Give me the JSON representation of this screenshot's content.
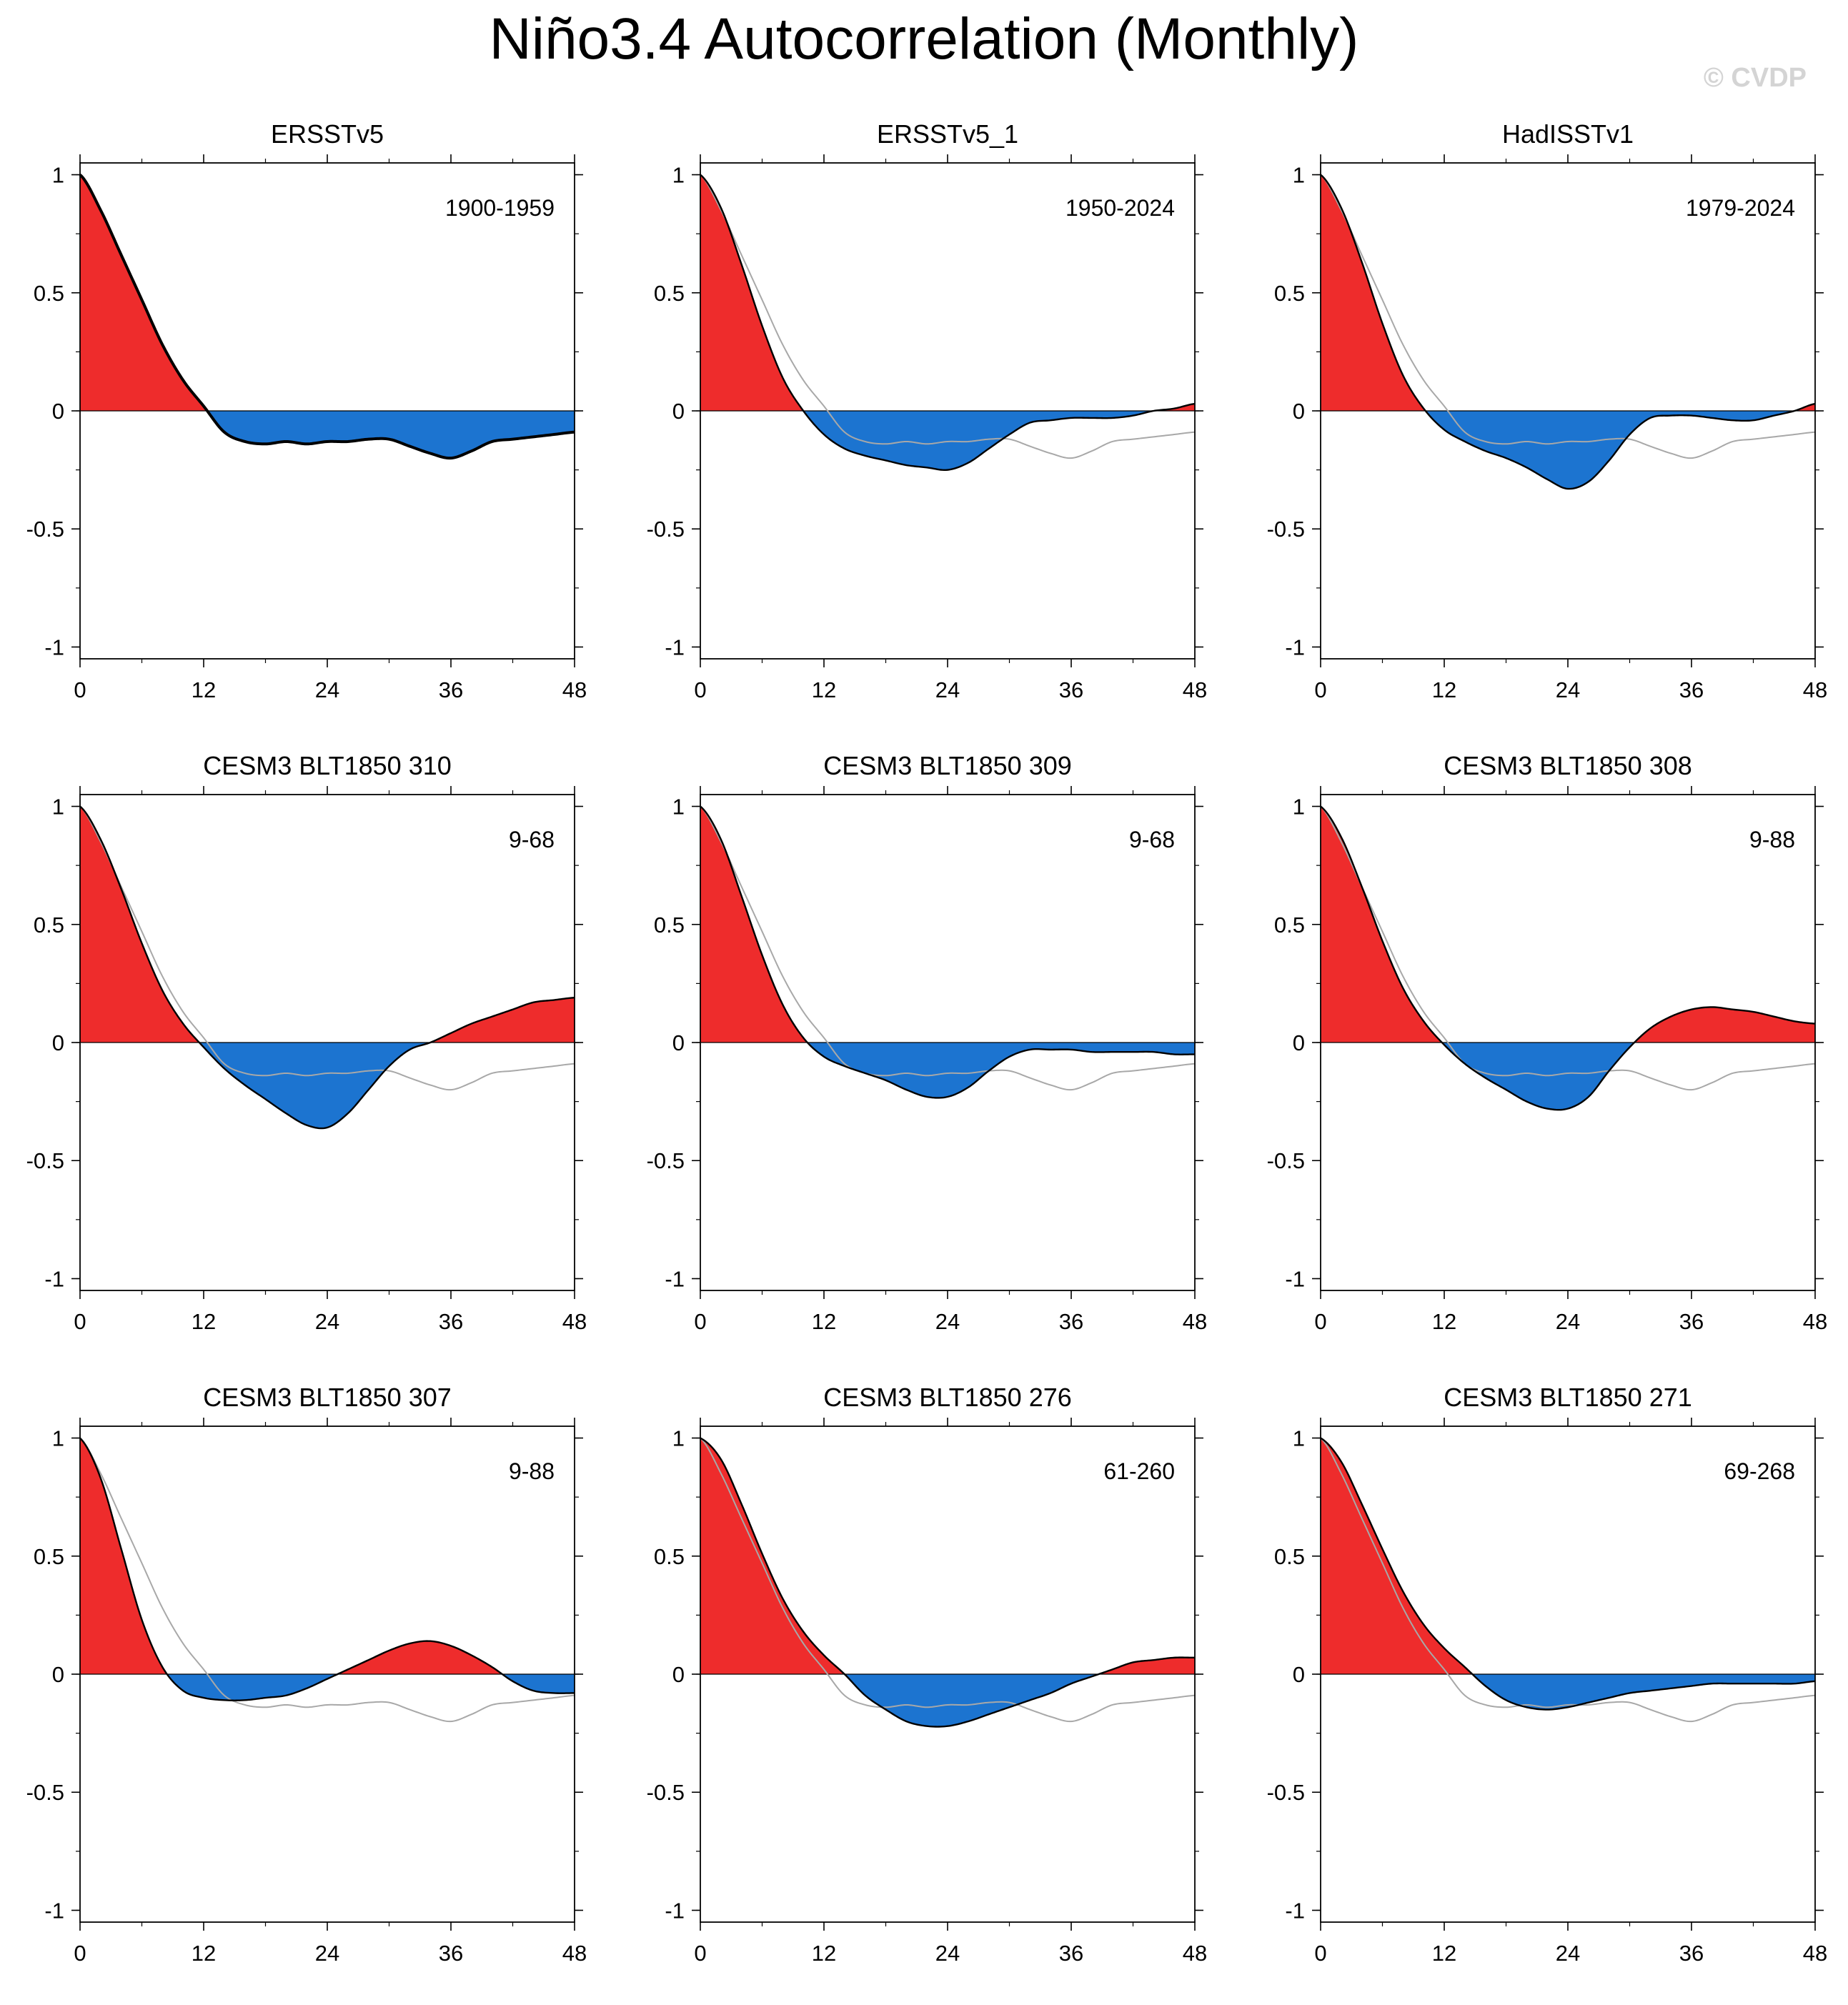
{
  "title": "Niño3.4 Autocorrelation (Monthly)",
  "watermark": "© CVDP",
  "colors": {
    "positive": "#ee2c2c",
    "negative": "#1c74d0",
    "line": "#000000",
    "reference": "#a8a8a8"
  },
  "chart_data": {
    "type": "area",
    "xlabel": "",
    "ylabel": "",
    "xlim": [
      0,
      48
    ],
    "ylim": [
      -1.05,
      1.05
    ],
    "xticks": [
      0,
      12,
      24,
      36,
      48
    ],
    "xtick_labels": [
      "0",
      "12",
      "24",
      "36",
      "48"
    ],
    "yticks": [
      1,
      0.5,
      0,
      -0.5,
      -1
    ],
    "ytick_labels": [
      "1",
      "0.5",
      "0",
      "-0.5",
      "-1"
    ],
    "x": [
      0,
      2,
      4,
      6,
      8,
      10,
      12,
      14,
      16,
      18,
      20,
      22,
      24,
      26,
      28,
      30,
      32,
      34,
      36,
      38,
      40,
      42,
      44,
      46,
      48
    ],
    "reference_series": "ERSSTv5",
    "panels": [
      {
        "title": "ERSSTv5",
        "period": "1900-1959",
        "values": [
          1.0,
          0.85,
          0.66,
          0.47,
          0.28,
          0.13,
          0.02,
          -0.09,
          -0.13,
          -0.14,
          -0.13,
          -0.14,
          -0.13,
          -0.13,
          -0.12,
          -0.12,
          -0.15,
          -0.18,
          -0.2,
          -0.17,
          -0.13,
          -0.12,
          -0.11,
          -0.1,
          -0.09
        ]
      },
      {
        "title": "ERSSTv5_1",
        "period": "1950-2024",
        "values": [
          1.0,
          0.86,
          0.62,
          0.36,
          0.14,
          0.0,
          -0.1,
          -0.16,
          -0.19,
          -0.21,
          -0.23,
          -0.24,
          -0.25,
          -0.22,
          -0.16,
          -0.1,
          -0.05,
          -0.04,
          -0.03,
          -0.03,
          -0.03,
          -0.02,
          0.0,
          0.01,
          0.03
        ]
      },
      {
        "title": "HadISSTv1",
        "period": "1979-2024",
        "values": [
          1.0,
          0.86,
          0.63,
          0.37,
          0.15,
          0.01,
          -0.08,
          -0.13,
          -0.17,
          -0.2,
          -0.24,
          -0.29,
          -0.33,
          -0.3,
          -0.21,
          -0.1,
          -0.03,
          -0.02,
          -0.02,
          -0.03,
          -0.04,
          -0.04,
          -0.02,
          0.0,
          0.03
        ]
      },
      {
        "title": "CESM3 BLT1850 310",
        "period": "9-68",
        "values": [
          1.0,
          0.86,
          0.65,
          0.42,
          0.22,
          0.08,
          -0.02,
          -0.11,
          -0.18,
          -0.24,
          -0.3,
          -0.35,
          -0.36,
          -0.3,
          -0.2,
          -0.1,
          -0.03,
          0.0,
          0.04,
          0.08,
          0.11,
          0.14,
          0.17,
          0.18,
          0.19
        ]
      },
      {
        "title": "CESM3 BLT1850 309",
        "period": "9-68",
        "values": [
          1.0,
          0.86,
          0.62,
          0.37,
          0.16,
          0.02,
          -0.06,
          -0.1,
          -0.13,
          -0.16,
          -0.2,
          -0.23,
          -0.23,
          -0.19,
          -0.12,
          -0.06,
          -0.03,
          -0.03,
          -0.03,
          -0.04,
          -0.04,
          -0.04,
          -0.04,
          -0.05,
          -0.05
        ]
      },
      {
        "title": "CESM3 BLT1850 308",
        "period": "9-88",
        "values": [
          1.0,
          0.87,
          0.66,
          0.43,
          0.23,
          0.09,
          -0.01,
          -0.09,
          -0.15,
          -0.2,
          -0.25,
          -0.28,
          -0.28,
          -0.23,
          -0.12,
          -0.02,
          0.06,
          0.11,
          0.14,
          0.15,
          0.14,
          0.13,
          0.11,
          0.09,
          0.08
        ]
      },
      {
        "title": "CESM3 BLT1850 307",
        "period": "9-88",
        "values": [
          1.0,
          0.83,
          0.53,
          0.23,
          0.03,
          -0.07,
          -0.1,
          -0.11,
          -0.11,
          -0.1,
          -0.09,
          -0.06,
          -0.02,
          0.02,
          0.06,
          0.1,
          0.13,
          0.14,
          0.12,
          0.08,
          0.03,
          -0.03,
          -0.07,
          -0.08,
          -0.08
        ]
      },
      {
        "title": "CESM3 BLT1850 276",
        "period": "61-260",
        "values": [
          1.0,
          0.91,
          0.72,
          0.51,
          0.32,
          0.18,
          0.08,
          0.0,
          -0.09,
          -0.15,
          -0.2,
          -0.22,
          -0.22,
          -0.2,
          -0.17,
          -0.14,
          -0.11,
          -0.08,
          -0.04,
          -0.01,
          0.02,
          0.05,
          0.06,
          0.07,
          0.07
        ]
      },
      {
        "title": "CESM3 BLT1850 271",
        "period": "69-268",
        "values": [
          1.0,
          0.9,
          0.72,
          0.53,
          0.35,
          0.21,
          0.11,
          0.03,
          -0.05,
          -0.11,
          -0.14,
          -0.15,
          -0.14,
          -0.12,
          -0.1,
          -0.08,
          -0.07,
          -0.06,
          -0.05,
          -0.04,
          -0.04,
          -0.04,
          -0.04,
          -0.04,
          -0.03
        ]
      }
    ]
  }
}
